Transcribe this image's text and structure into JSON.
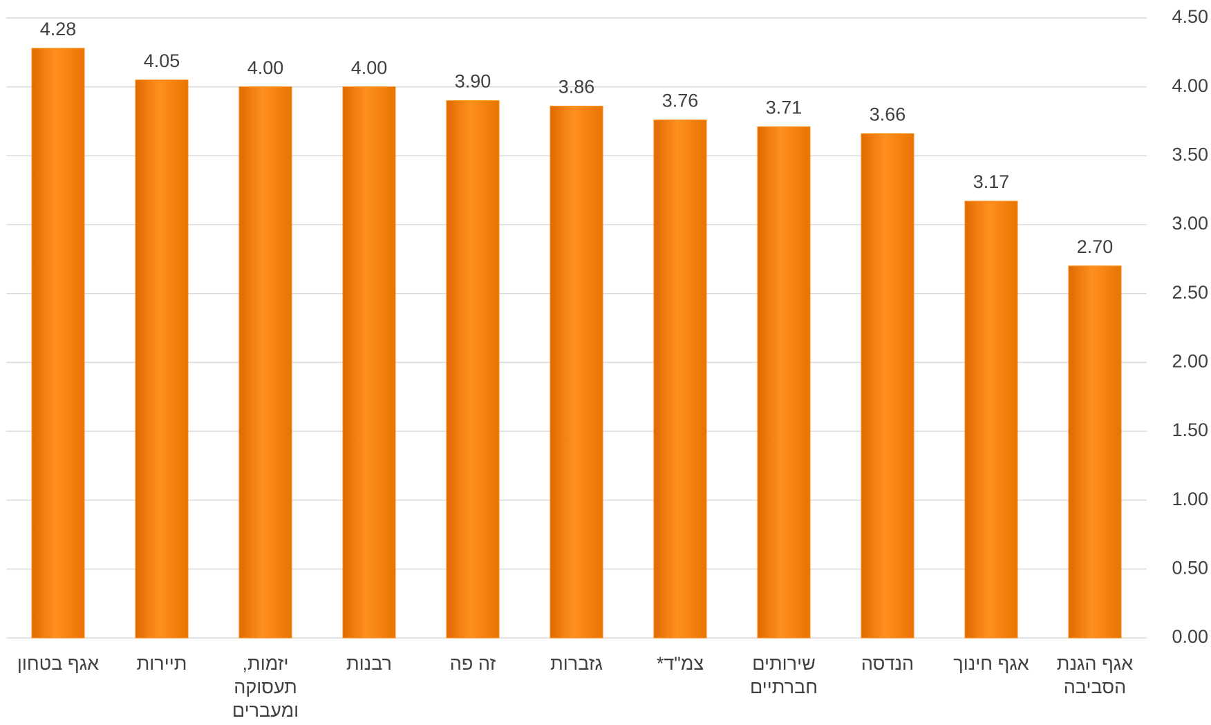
{
  "chart_data": {
    "type": "bar",
    "categories": [
      "אגף בטחון",
      "תיירות",
      "יזמות, תעסוקה ומעברים",
      "רבנות",
      "זה פה",
      "גזברות",
      "צמ\"ד*",
      "שירותים חברתיים",
      "הנדסה",
      "אגף חינוך",
      "אגף הגנת הסביבה"
    ],
    "values": [
      4.28,
      4.05,
      4.0,
      4.0,
      3.9,
      3.86,
      3.76,
      3.71,
      3.66,
      3.17,
      2.7
    ],
    "value_labels": [
      "4.28",
      "4.05",
      "4.00",
      "4.00",
      "3.90",
      "3.86",
      "3.76",
      "3.71",
      "3.66",
      "3.17",
      "2.70"
    ],
    "color": "#ff8a10",
    "ylim": [
      0,
      4.5
    ],
    "yticks": [
      {
        "value": 0,
        "label": "0.00"
      },
      {
        "value": 0.5,
        "label": "0.50"
      },
      {
        "value": 1,
        "label": "1.00"
      },
      {
        "value": 1.5,
        "label": "1.50"
      },
      {
        "value": 2,
        "label": "2.00"
      },
      {
        "value": 2.5,
        "label": "2.50"
      },
      {
        "value": 3,
        "label": "3.00"
      },
      {
        "value": 3.5,
        "label": "3.50"
      },
      {
        "value": 4,
        "label": "4.00"
      },
      {
        "value": 4.5,
        "label": "4.50"
      }
    ],
    "grid": true
  }
}
